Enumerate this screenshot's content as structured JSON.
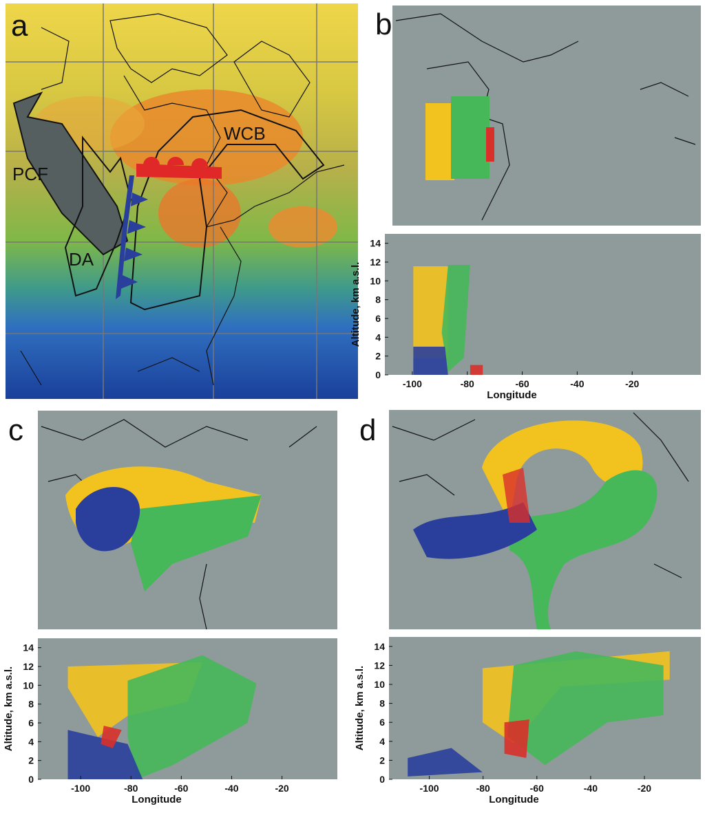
{
  "figure": {
    "panel_labels": [
      "a",
      "b",
      "c",
      "d"
    ],
    "annotations": [
      "PCF",
      "DA",
      "WCB"
    ]
  },
  "chart_data": [
    {
      "type": "scatter",
      "xlabel": "Longitude",
      "ylabel": "Altitude, km a.s.l.",
      "xlim": [
        -110,
        5
      ],
      "ylim": [
        0,
        15
      ],
      "xticks": [
        -100,
        -80,
        -60,
        -40,
        -20
      ],
      "yticks": [
        0,
        2,
        4,
        6,
        8,
        10,
        12,
        14
      ]
    },
    {
      "type": "scatter",
      "xlabel": "Longitude",
      "ylabel": "Altitude, km a.s.l.",
      "xlim": [
        -117,
        2
      ],
      "ylim": [
        0,
        15
      ],
      "xticks": [
        -100,
        -80,
        -60,
        -40,
        -20
      ],
      "yticks": [
        0,
        2,
        4,
        6,
        8,
        10,
        12,
        14
      ]
    },
    {
      "type": "scatter",
      "xlabel": "Longitude",
      "ylabel": "Altitude, km a.s.l.",
      "xlim": [
        -115,
        1
      ],
      "ylim": [
        0,
        15
      ],
      "xticks": [
        -100,
        -80,
        -60,
        -40,
        -20
      ],
      "yticks": [
        0,
        2,
        4,
        6,
        8,
        10,
        12,
        14
      ]
    }
  ]
}
